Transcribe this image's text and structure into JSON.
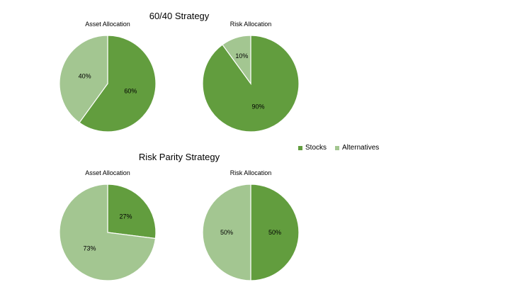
{
  "colors": {
    "stocks": "#629d3e",
    "alternatives": "#a3c691",
    "separator": "#ffffff"
  },
  "legend": {
    "items": [
      {
        "label": "Stocks",
        "color": "#629d3e"
      },
      {
        "label": "Alternatives",
        "color": "#a3c691"
      }
    ],
    "placement": "right"
  },
  "groups": [
    {
      "title": "60/40 Strategy"
    },
    {
      "title": "Risk Parity Strategy"
    }
  ],
  "chart_data": [
    {
      "type": "pie",
      "group": "60/40 Strategy",
      "title": "Asset Allocation",
      "categories": [
        "Stocks",
        "Alternatives"
      ],
      "values": [
        60,
        40
      ],
      "labels": [
        "60%",
        "40%"
      ]
    },
    {
      "type": "pie",
      "group": "60/40 Strategy",
      "title": "Risk Allocation",
      "categories": [
        "Stocks",
        "Alternatives"
      ],
      "values": [
        90,
        10
      ],
      "labels": [
        "90%",
        "10%"
      ]
    },
    {
      "type": "pie",
      "group": "Risk Parity Strategy",
      "title": "Asset Allocation",
      "categories": [
        "Stocks",
        "Alternatives"
      ],
      "values": [
        27,
        73
      ],
      "labels": [
        "27%",
        "73%"
      ]
    },
    {
      "type": "pie",
      "group": "Risk Parity Strategy",
      "title": "Risk Allocation",
      "categories": [
        "Stocks",
        "Alternatives"
      ],
      "values": [
        50,
        50
      ],
      "labels": [
        "50%",
        "50%"
      ]
    }
  ]
}
